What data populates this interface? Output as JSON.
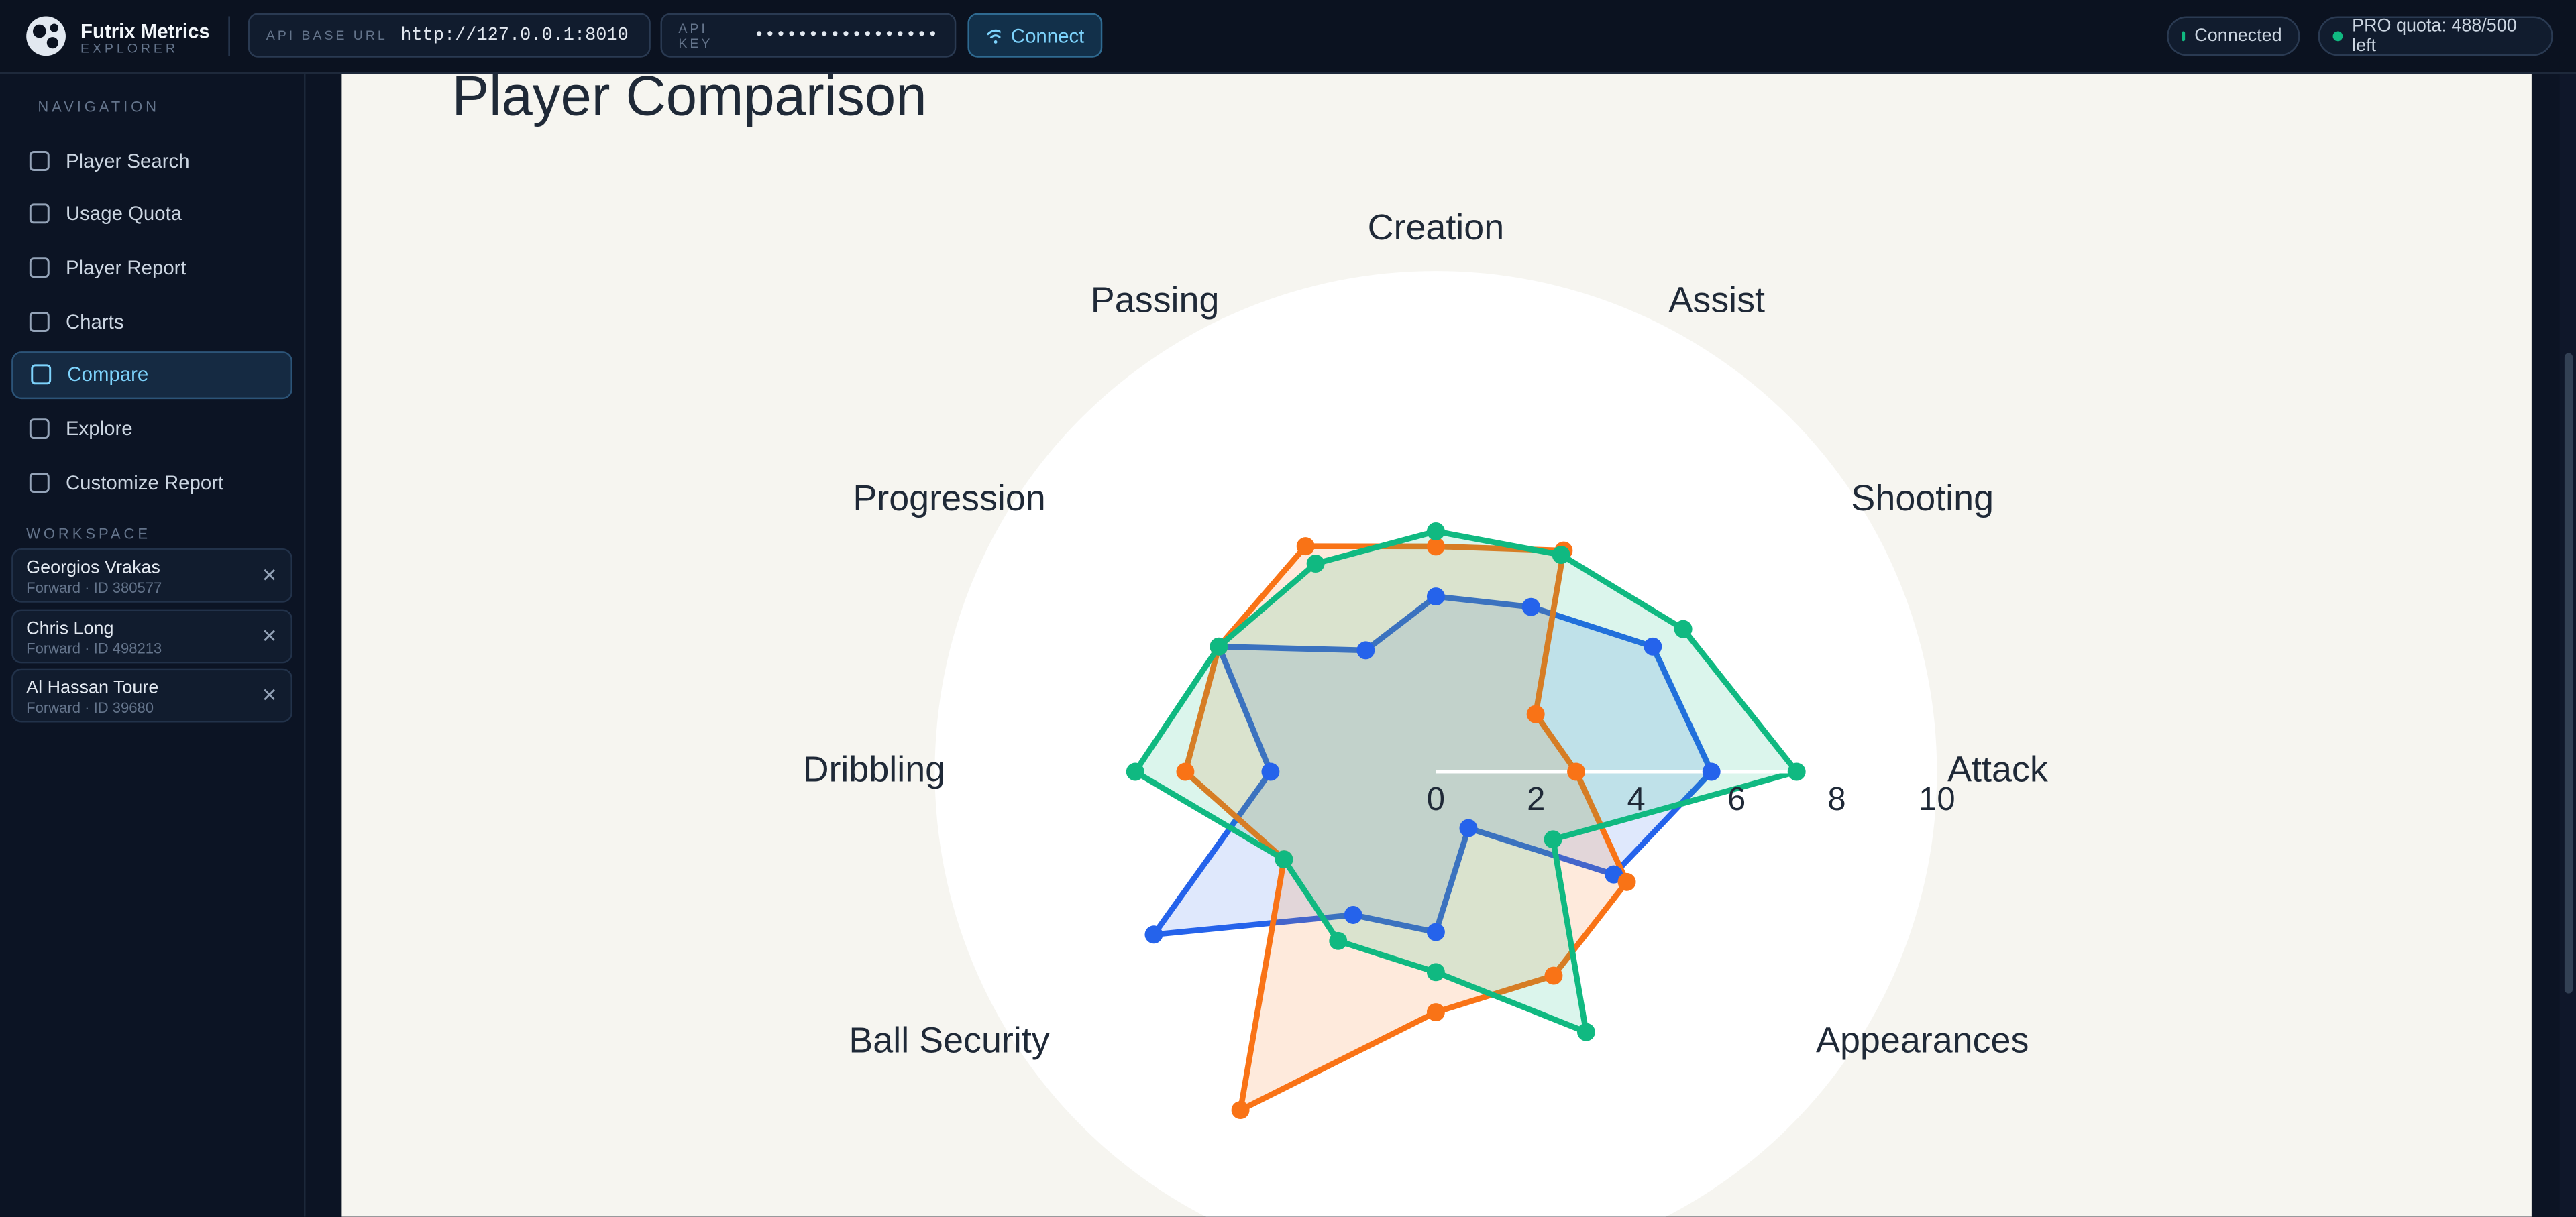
{
  "header": {
    "brand": "Futrix Metrics",
    "brand_sub": "EXPLORER",
    "api_base_url_label": "API BASE URL",
    "api_base_url": "http://127.0.0.1:8010",
    "api_key_label": "API KEY",
    "api_key": "•••••••••••••••••",
    "connect_button": "Connect",
    "status": "Connected",
    "quota": "PRO quota: 488/500 left"
  },
  "sidebar": {
    "navigation_title": "NAVIGATION",
    "nav": [
      {
        "label": "Player Search"
      },
      {
        "label": "Usage Quota"
      },
      {
        "label": "Player Report"
      },
      {
        "label": "Charts"
      },
      {
        "label": "Compare",
        "active": true
      },
      {
        "label": "Explore"
      },
      {
        "label": "Customize Report"
      }
    ],
    "workspace_title": "WORKSPACE",
    "workspace": [
      {
        "name": "Georgios Vrakas",
        "meta": "Forward · ID 380577"
      },
      {
        "name": "Chris Long",
        "meta": "Forward · ID 498213"
      },
      {
        "name": "Al Hassan Toure",
        "meta": "Forward · ID 39680"
      }
    ]
  },
  "chart_data": {
    "type": "radar",
    "title": "Player Comparison",
    "categories": [
      "Attack",
      "Shooting",
      "Assist",
      "Creation",
      "Passing",
      "Progression",
      "Dribbling",
      "Ball Security",
      null,
      null,
      null,
      "Appearances"
    ],
    "rlim": [
      0,
      10
    ],
    "rticks": [
      0,
      2,
      4,
      6,
      8,
      10
    ],
    "series": [
      {
        "color": "#2563eb",
        "values": [
          5.5,
          5.0,
          3.8,
          3.5,
          2.8,
          5.0,
          3.3,
          6.5,
          3.3,
          3.2,
          1.3,
          4.1
        ]
      },
      {
        "color": "#f97316",
        "values": [
          2.8,
          2.3,
          5.1,
          4.5,
          5.2,
          5.0,
          5.0,
          3.5,
          7.8,
          4.8,
          4.7,
          4.4
        ]
      },
      {
        "color": "#10b981",
        "values": [
          7.2,
          5.7,
          5.0,
          4.8,
          4.8,
          5.0,
          6.0,
          3.5,
          3.9,
          4.0,
          6.0,
          2.7
        ]
      }
    ]
  }
}
